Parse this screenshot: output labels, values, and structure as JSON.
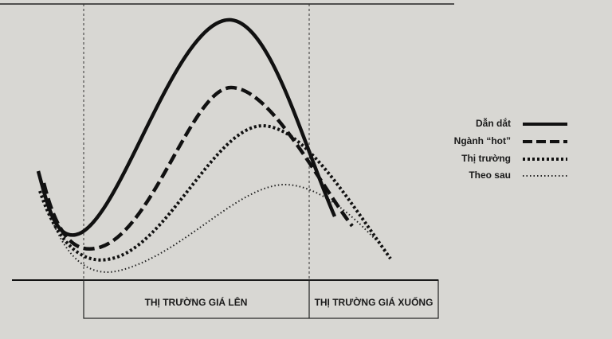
{
  "legend": [
    {
      "label": "Dẫn dắt"
    },
    {
      "label": "Ngành “hot”"
    },
    {
      "label": "Thị trường"
    },
    {
      "label": "Theo sau"
    }
  ],
  "phases": [
    {
      "label": "THỊ TRƯỜNG GIÁ LÊN"
    },
    {
      "label": "THỊ TRƯỜNG GIÁ XUỐNG"
    }
  ]
}
